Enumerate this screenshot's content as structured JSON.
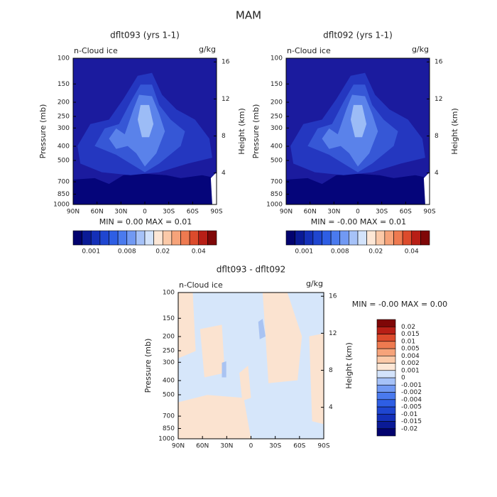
{
  "title": "MAM",
  "chart_data": [
    {
      "type": "contour",
      "title": "dflt093 (yrs 1-1)",
      "subtitle": "n-Cloud ice",
      "units": "g/kg",
      "ylabel": "Pressure (mb)",
      "y2label": "Height (km)",
      "xlim": [
        90,
        -90
      ],
      "xticks": [
        {
          "value": 90,
          "label": "90N"
        },
        {
          "value": 60,
          "label": "60N"
        },
        {
          "value": 30,
          "label": "30N"
        },
        0,
        {
          "value": -30,
          "label": "30S"
        },
        {
          "value": -60,
          "label": "60S"
        },
        {
          "value": -90,
          "label": "90S"
        }
      ],
      "ylim": [
        1000,
        100
      ],
      "yscale": "log",
      "yticks": [
        100,
        150,
        200,
        250,
        300,
        400,
        500,
        700,
        850,
        1000
      ],
      "y2lim": [
        0.6,
        16.4
      ],
      "y2ticks": [
        4,
        8,
        12,
        16
      ],
      "stats": "MIN =    0.00    MAX =    0.01",
      "colorbar": {
        "orientation": "horizontal",
        "colors": [
          "#02026e",
          "#0a1a96",
          "#1430b8",
          "#1f46d0",
          "#2e5ee4",
          "#4a7aee",
          "#7199f3",
          "#a6c2f8",
          "#d3e3fb",
          "#fde7d6",
          "#fbc9a8",
          "#f6a37a",
          "#ee7a50",
          "#dc4b2c",
          "#b81f16",
          "#7f0707"
        ],
        "levels": [
          null,
          0.001,
          null,
          null,
          null,
          0.008,
          null,
          null,
          null,
          0.02,
          null,
          null,
          null,
          0.04,
          null
        ]
      }
    },
    {
      "type": "contour",
      "title": "dflt092 (yrs 1-1)",
      "subtitle": "n-Cloud ice",
      "units": "g/kg",
      "ylabel": "Pressure (mb)",
      "y2label": "Height (km)",
      "xlim": [
        90,
        -90
      ],
      "xticks": [
        {
          "value": 90,
          "label": "90N"
        },
        {
          "value": 60,
          "label": "60N"
        },
        {
          "value": 30,
          "label": "30N"
        },
        0,
        {
          "value": -30,
          "label": "30S"
        },
        {
          "value": -60,
          "label": "60S"
        },
        {
          "value": -90,
          "label": "90S"
        }
      ],
      "ylim": [
        1000,
        100
      ],
      "yscale": "log",
      "yticks": [
        100,
        150,
        200,
        250,
        300,
        400,
        500,
        700,
        850,
        1000
      ],
      "y2lim": [
        0.6,
        16.4
      ],
      "y2ticks": [
        4,
        8,
        12,
        16
      ],
      "stats": "MIN =   -0.00    MAX =    0.01",
      "colorbar": {
        "orientation": "horizontal",
        "colors": [
          "#02026e",
          "#0a1a96",
          "#1430b8",
          "#1f46d0",
          "#2e5ee4",
          "#4a7aee",
          "#7199f3",
          "#a6c2f8",
          "#d3e3fb",
          "#fde7d6",
          "#fbc9a8",
          "#f6a37a",
          "#ee7a50",
          "#dc4b2c",
          "#b81f16",
          "#7f0707"
        ],
        "levels": [
          null,
          0.001,
          null,
          null,
          null,
          0.008,
          null,
          null,
          null,
          0.02,
          null,
          null,
          null,
          0.04,
          null
        ]
      }
    },
    {
      "type": "contour",
      "title": "dflt093 - dflt092",
      "subtitle": "n-Cloud ice",
      "units": "g/kg",
      "ylabel": "Pressure (mb)",
      "y2label": "Height (km)",
      "xlim": [
        90,
        -90
      ],
      "xticks": [
        {
          "value": 90,
          "label": "90N"
        },
        {
          "value": 60,
          "label": "60N"
        },
        {
          "value": 30,
          "label": "30N"
        },
        0,
        {
          "value": -30,
          "label": "30S"
        },
        {
          "value": -60,
          "label": "60S"
        },
        {
          "value": -90,
          "label": "90S"
        }
      ],
      "ylim": [
        1000,
        100
      ],
      "yscale": "log",
      "yticks": [
        100,
        150,
        200,
        250,
        300,
        400,
        500,
        700,
        850,
        1000
      ],
      "y2lim": [
        0.6,
        16.4
      ],
      "y2ticks": [
        4,
        8,
        12,
        16
      ],
      "stats": "MIN =   -0.00    MAX =    0.00",
      "colorbar": {
        "orientation": "vertical",
        "colors": [
          "#02026e",
          "#0a1a96",
          "#1430b8",
          "#1f46d0",
          "#2e5ee4",
          "#4a7aee",
          "#7199f3",
          "#a6c2f8",
          "#d3e3fb",
          "#fde7d6",
          "#fbc9a8",
          "#f6a37a",
          "#ee7a50",
          "#dc4b2c",
          "#b81f16",
          "#7f0707"
        ],
        "levels": [
          -0.02,
          -0.015,
          -0.01,
          -0.005,
          -0.004,
          -0.002,
          -0.001,
          0,
          0.001,
          0.002,
          0.004,
          0.005,
          0.01,
          0.015,
          0.02
        ]
      }
    }
  ]
}
